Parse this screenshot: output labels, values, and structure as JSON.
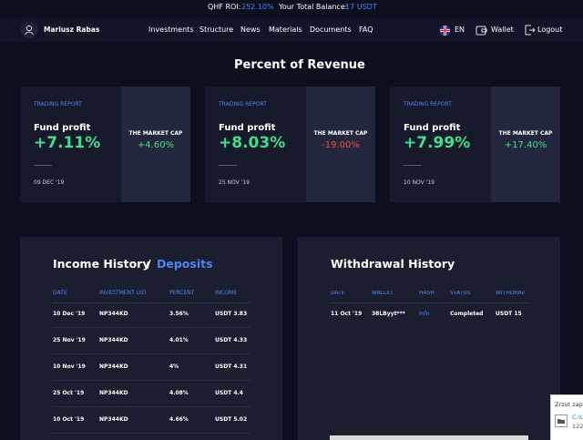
{
  "top_bar": {
    "roi_label": "QHF ROI:",
    "roi_value": "252.10%",
    "balance_label": "Your Total Balance:",
    "balance_value": "17 USDT"
  },
  "nav": {
    "user": "Mariusz Rabas",
    "links": [
      "Investments",
      "Structure",
      "News",
      "Materials",
      "Documents",
      "FAQ"
    ],
    "language": "EN",
    "wallet": "Wallet",
    "logout": "Logout"
  },
  "page_title": "Percent of Revenue",
  "cards": [
    {
      "label": "TRADING REPORT",
      "profit_label": "Fund profit",
      "profit": "+7.11%",
      "date": "09 DEC '19",
      "cap_label": "THE MARKET CAP",
      "cap": "+4.60%"
    },
    {
      "label": "TRADING REPORT",
      "profit_label": "Fund profit",
      "profit": "+8.03%",
      "date": "25 NOV '19",
      "cap_label": "THE MARKET CAP",
      "cap": "-19.00%"
    },
    {
      "label": "TRADING REPORT",
      "profit_label": "Fund profit",
      "profit": "+7.99%",
      "date": "10 NOV '19",
      "cap_label": "THE MARKET CAP",
      "cap": "+17.40%"
    }
  ],
  "income": {
    "title": "Income History",
    "separator": "/",
    "tab": "Deposits",
    "columns": [
      "DATE",
      "INVESTMENT UID",
      "PERCENT",
      "INCOME"
    ],
    "rows": [
      [
        "10 Dec '19",
        "NP344KD",
        "3.56%",
        "USDT 3.83"
      ],
      [
        "25 Nov '19",
        "NP344KD",
        "4.01%",
        "USDT 4.33"
      ],
      [
        "10 Nov '19",
        "NP344KD",
        "4%",
        "USDT 4.31"
      ],
      [
        "25 Oct '19",
        "NP344KD",
        "4.08%",
        "USDT 4.4"
      ],
      [
        "10 Oct '19",
        "NP344KD",
        "4.66%",
        "USDT 5.02"
      ]
    ]
  },
  "withdrawal": {
    "title": "Withdrawal History",
    "columns": [
      "DATE",
      "WALLET",
      "HASH",
      "STATUS",
      "WITHDRAV"
    ],
    "rows": [
      [
        "11 Oct '19",
        "38LByyt***",
        "Info",
        "Completed",
        "USDT 15"
      ]
    ]
  },
  "notification": {
    "title": "Zrzut zap",
    "path": "C:\\U",
    "size": "122"
  }
}
